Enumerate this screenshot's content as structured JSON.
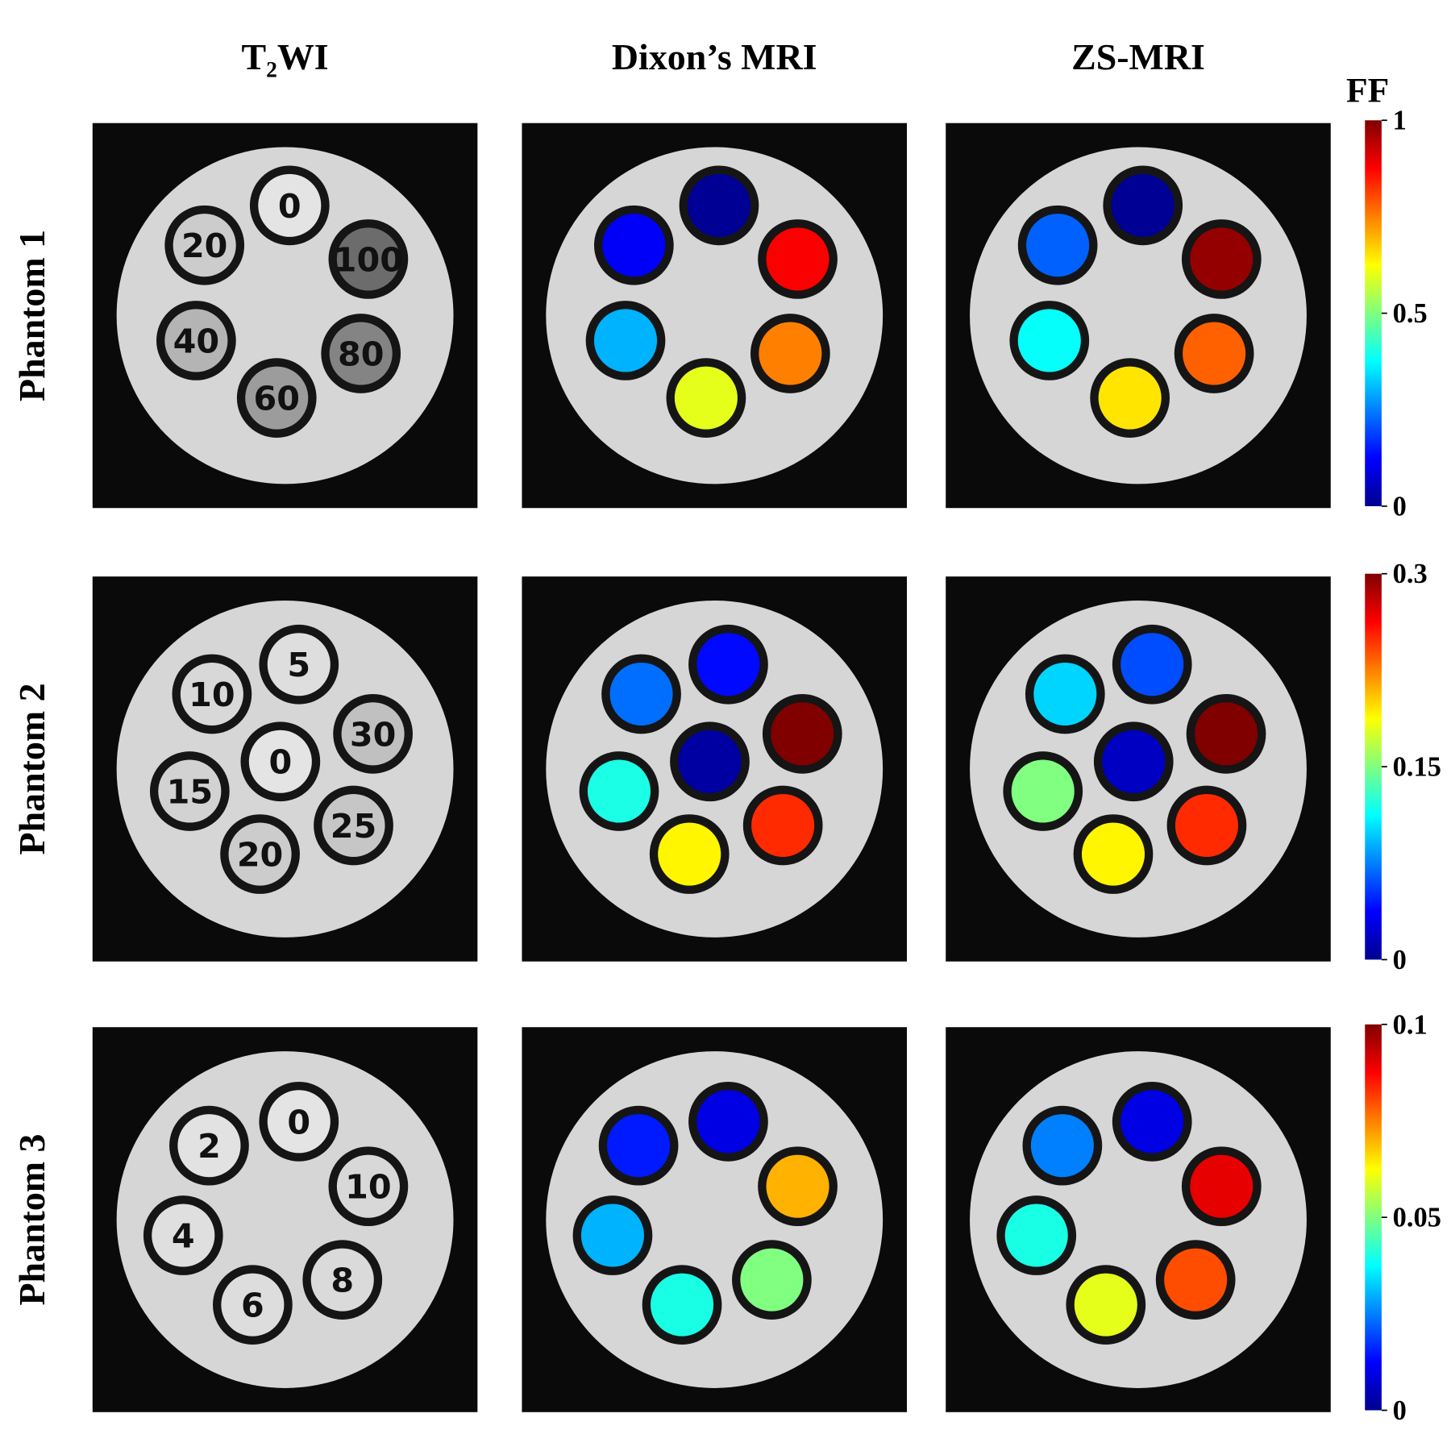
{
  "column_titles": [
    "T₂WI",
    "Dixon’s MRI",
    "ZS-MRI"
  ],
  "colorbar_label": "FF",
  "rows": [
    {
      "label": "Phantom 1",
      "vial_labels": [
        0,
        20,
        100,
        40,
        80,
        60
      ],
      "maps": [
        {
          "values": [
            0.02,
            0.12,
            0.88,
            0.3,
            0.75,
            0.6
          ]
        },
        {
          "values": [
            0.02,
            0.22,
            0.98,
            0.38,
            0.78,
            0.65
          ]
        }
      ],
      "colorbar": {
        "lim": [
          0,
          1
        ],
        "ticks": [
          0,
          0.5,
          1
        ]
      }
    },
    {
      "label": "Phantom 2",
      "vial_labels": [
        5,
        10,
        30,
        0,
        15,
        25,
        20
      ],
      "maps": [
        {
          "values": [
            0.04,
            0.07,
            0.3,
            0.01,
            0.12,
            0.25,
            0.19
          ]
        },
        {
          "values": [
            0.06,
            0.1,
            0.3,
            0.02,
            0.15,
            0.25,
            0.19
          ]
        }
      ],
      "colorbar": {
        "lim": [
          0,
          0.3
        ],
        "ticks": [
          0,
          0.15,
          0.3
        ]
      }
    },
    {
      "label": "Phantom 3",
      "vial_labels": [
        0,
        2,
        10,
        4,
        8,
        6
      ],
      "maps": [
        {
          "values": [
            0.01,
            0.015,
            0.07,
            0.03,
            0.05,
            0.04
          ]
        },
        {
          "values": [
            0.01,
            0.025,
            0.09,
            0.04,
            0.08,
            0.06
          ]
        }
      ],
      "colorbar": {
        "lim": [
          0,
          0.1
        ],
        "ticks": [
          0,
          0.05,
          0.1
        ]
      }
    }
  ]
}
